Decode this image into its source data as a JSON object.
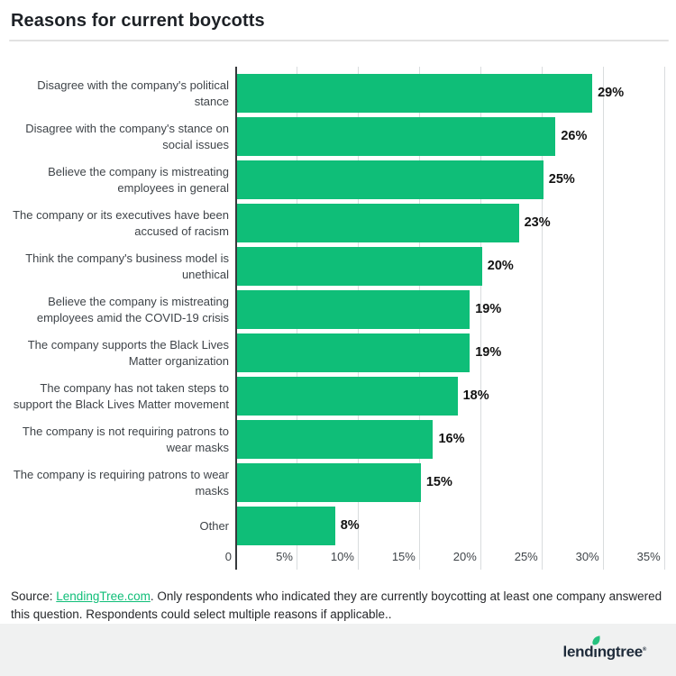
{
  "header": {
    "title": "Reasons for current boycotts"
  },
  "source": {
    "prefix": "Source: ",
    "link_text": "LendingTree.com",
    "suffix": ". Only respondents who indicated they are currently boycotting at least one company answered this question. Respondents could select multiple reasons if applicable.."
  },
  "footer": {
    "logo_part1": "lend",
    "logo_i": "ı",
    "logo_part2": "ngtree",
    "trademark": "®"
  },
  "colors": {
    "bar_green": "#0fbe78",
    "link_green": "#0fbe78",
    "leaf_green": "#25c17e",
    "logo_navy": "#1e2b3a",
    "footer_bg": "#f0f1f1"
  },
  "chart_data": {
    "type": "bar",
    "orientation": "horizontal",
    "title": "Reasons for current boycotts",
    "xlabel": "",
    "ylabel": "",
    "xlim": [
      0,
      35
    ],
    "grid": "vertical",
    "legend": "none",
    "categories": [
      "Disagree with the company's political\nstance",
      "Disagree with the company's stance on\nsocial issues",
      "Believe the company is mistreating\nemployees in general",
      "The company or its executives have been\naccused of racism",
      "Think the company's business model is\nunethical",
      "Believe the company is mistreating\nemployees amid the COVID-19 crisis",
      "The company supports the Black Lives\nMatter organization",
      "The company has not taken steps to\nsupport the Black Lives Matter movement",
      "The company is not requiring patrons to\nwear masks",
      "The company is requiring patrons to wear\nmasks",
      "Other"
    ],
    "values": [
      29,
      26,
      25,
      23,
      20,
      19,
      19,
      18,
      16,
      15,
      8
    ],
    "value_labels": [
      "29%",
      "26%",
      "25%",
      "23%",
      "20%",
      "19%",
      "19%",
      "18%",
      "16%",
      "15%",
      "8%"
    ],
    "x_ticks": [
      0,
      5,
      10,
      15,
      20,
      25,
      30,
      35
    ],
    "x_tick_labels": [
      "0",
      "5%",
      "10%",
      "15%",
      "20%",
      "25%",
      "30%",
      "35%"
    ]
  }
}
